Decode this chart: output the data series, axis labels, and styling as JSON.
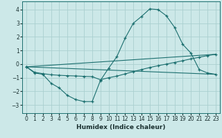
{
  "background_color": "#cce8e8",
  "grid_color": "#aacfcf",
  "line_color": "#1a6e6e",
  "marker": "+",
  "xlabel": "Humidex (Indice chaleur)",
  "xlim": [
    -0.5,
    23.5
  ],
  "ylim": [
    -3.6,
    4.6
  ],
  "yticks": [
    -3,
    -2,
    -1,
    0,
    1,
    2,
    3,
    4
  ],
  "xticks": [
    0,
    1,
    2,
    3,
    4,
    5,
    6,
    7,
    8,
    9,
    10,
    11,
    12,
    13,
    14,
    15,
    16,
    17,
    18,
    19,
    20,
    21,
    22,
    23
  ],
  "line1_x": [
    0,
    1,
    2,
    3,
    4,
    5,
    6,
    7,
    8,
    9,
    10,
    11,
    12,
    13,
    14,
    15,
    16,
    17,
    18,
    19,
    20,
    21,
    22,
    23
  ],
  "line1_y": [
    -0.2,
    -0.65,
    -0.75,
    -1.4,
    -1.75,
    -2.3,
    -2.6,
    -2.75,
    -2.75,
    -1.2,
    -0.3,
    0.55,
    1.9,
    3.0,
    3.5,
    4.05,
    4.0,
    3.55,
    2.7,
    1.45,
    0.8,
    -0.4,
    -0.65,
    -0.75
  ],
  "line2_x": [
    0,
    1,
    2,
    3,
    4,
    5,
    6,
    7,
    8,
    9,
    10,
    11,
    12,
    13,
    14,
    15,
    16,
    17,
    18,
    19,
    20,
    21,
    22,
    23
  ],
  "line2_y": [
    -0.2,
    -0.6,
    -0.7,
    -0.78,
    -0.82,
    -0.85,
    -0.87,
    -0.9,
    -0.92,
    -1.15,
    -1.0,
    -0.88,
    -0.72,
    -0.55,
    -0.4,
    -0.25,
    -0.12,
    0.0,
    0.12,
    0.25,
    0.38,
    0.5,
    0.62,
    0.72
  ],
  "line3_x": [
    0,
    23
  ],
  "line3_y": [
    -0.2,
    -0.75
  ],
  "line4_x": [
    0,
    23
  ],
  "line4_y": [
    -0.2,
    0.72
  ]
}
